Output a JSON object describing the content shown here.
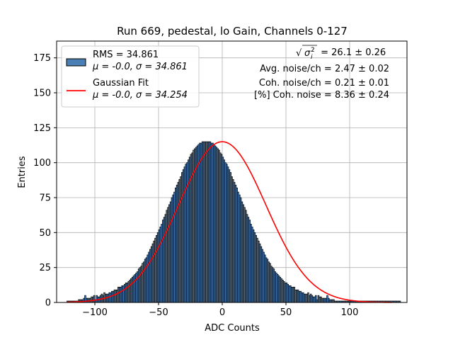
{
  "chart_data": {
    "type": "bar",
    "title": "Run 669, pedestal, lo Gain, Channels 0-127",
    "xlabel": "ADC Counts",
    "ylabel": "Entries",
    "xlim": [
      -130,
      145
    ],
    "ylim": [
      0,
      187
    ],
    "xticks": [
      -100,
      -50,
      0,
      50,
      100
    ],
    "yticks": [
      0,
      25,
      50,
      75,
      100,
      125,
      150,
      175
    ],
    "xtick_labels": [
      "−100",
      "−50",
      "0",
      "50",
      "100"
    ],
    "ytick_labels": [
      "0",
      "25",
      "50",
      "75",
      "100",
      "125",
      "150",
      "175"
    ],
    "grid": true,
    "histogram": {
      "name": "RMS = 34.861",
      "stats_label": "μ = -0.0, σ = 34.861",
      "color": "#4a7fb5",
      "edge_color": "#000000",
      "bin_start": -122,
      "bin_width": 1,
      "counts": [
        1,
        1,
        1,
        1,
        1,
        1,
        1,
        1,
        1,
        2,
        2,
        2,
        2,
        3,
        5,
        3,
        3,
        3,
        3,
        4,
        4,
        5,
        2,
        5,
        4,
        4,
        5,
        6,
        5,
        7,
        6,
        6,
        6,
        7,
        7,
        8,
        8,
        9,
        9,
        9,
        11,
        11,
        11,
        12,
        12,
        13,
        14,
        14,
        15,
        16,
        17,
        18,
        19,
        20,
        21,
        22,
        24,
        25,
        26,
        28,
        29,
        31,
        32,
        34,
        36,
        38,
        40,
        42,
        44,
        46,
        48,
        50,
        52,
        54,
        56,
        59,
        61,
        63,
        66,
        68,
        70,
        72,
        75,
        77,
        79,
        82,
        84,
        86,
        88,
        90,
        93,
        95,
        97,
        99,
        100,
        102,
        104,
        106,
        107,
        109,
        110,
        111,
        112,
        113,
        114,
        114,
        115,
        115,
        115,
        115,
        115,
        115,
        115,
        114,
        114,
        113,
        112,
        111,
        110,
        109,
        107,
        106,
        104,
        102,
        100,
        99,
        97,
        95,
        93,
        90,
        88,
        86,
        84,
        82,
        79,
        77,
        75,
        72,
        70,
        68,
        66,
        63,
        61,
        59,
        56,
        54,
        52,
        50,
        48,
        46,
        44,
        42,
        40,
        38,
        36,
        34,
        32,
        31,
        29,
        28,
        26,
        25,
        24,
        22,
        21,
        20,
        19,
        18,
        17,
        16,
        15,
        14,
        14,
        13,
        12,
        12,
        11,
        11,
        11,
        9,
        9,
        9,
        8,
        8,
        7,
        7,
        6,
        6,
        6,
        7,
        5,
        6,
        5,
        4,
        4,
        5,
        2,
        5,
        4,
        4,
        3,
        3,
        3,
        3,
        5,
        3,
        2,
        2,
        2,
        2,
        1,
        1,
        1,
        1,
        1,
        1,
        1,
        1,
        1,
        1,
        1,
        1,
        1,
        1,
        1,
        1,
        1,
        1,
        1,
        1,
        1,
        1,
        1,
        1,
        1,
        1,
        1,
        1,
        1,
        1,
        1,
        1,
        1,
        1,
        1,
        1,
        1,
        1,
        1,
        1,
        1,
        1,
        1,
        1,
        1,
        1,
        1,
        1,
        1,
        1,
        1,
        1
      ]
    },
    "fit": {
      "name": "Gaussian Fit",
      "stats_label": "μ = -0.0, σ = 34.254",
      "type": "gaussian",
      "mu": 0.0,
      "sigma": 34.254,
      "amplitude": 115,
      "color": "#ff0000"
    },
    "legend_position": "top-left",
    "annotations": [
      {
        "prefix": "",
        "text": " = 26.1 ± 0.26"
      },
      {
        "prefix": "",
        "text": "Avg. noise/ch = 2.47 ± 0.02"
      },
      {
        "prefix": "",
        "text": "Coh. noise/ch = 0.21 ± 0.01"
      },
      {
        "prefix": "",
        "text": "[%] Coh. noise = 8.36 ± 0.24"
      }
    ]
  }
}
